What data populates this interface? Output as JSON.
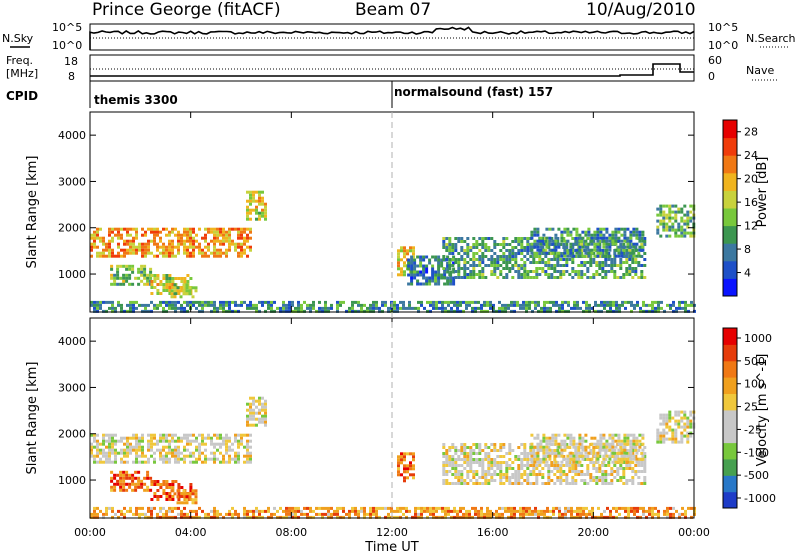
{
  "header": {
    "station": "Prince George (fitACF)",
    "beam": "Beam 07",
    "date": "10/Aug/2010"
  },
  "noise_panel": {
    "left_label": "N.Sky",
    "right_label": "N.Search",
    "left_ticks": [
      "10^5",
      "10^0"
    ],
    "right_ticks": [
      "10^5",
      "10^0"
    ]
  },
  "freq_panel": {
    "label_line1": "Freq.",
    "label_line2": "[MHz]",
    "right_label": "Nave",
    "left_ticks": [
      "18",
      "8"
    ],
    "right_ticks": [
      "60",
      "0"
    ]
  },
  "cpid": {
    "label": "CPID",
    "segments": [
      {
        "name": "themis 3300",
        "start_hour": 0
      },
      {
        "name": "normalsound (fast) 157",
        "start_hour": 12
      }
    ]
  },
  "chart_data": [
    {
      "type": "heatmap",
      "name": "power",
      "ylabel": "Slant Range [km]",
      "ylim": [
        180,
        4500
      ],
      "yticks": [
        "1000",
        "2000",
        "3000",
        "4000"
      ],
      "ytick_values": [
        1000,
        2000,
        3000,
        4000
      ],
      "xlim_hours": [
        0,
        24
      ],
      "colorbar": {
        "label": "Power [dB]",
        "ticks": [
          "4",
          "8",
          "12",
          "16",
          "20",
          "24",
          "28"
        ],
        "range": [
          0,
          30
        ],
        "colors": [
          "#0a14ff",
          "#1e50c8",
          "#3c78a0",
          "#3c9650",
          "#78c83c",
          "#c8d23c",
          "#f0b41e",
          "#f07814",
          "#f03c0a",
          "#e60000"
        ]
      },
      "regions": [
        {
          "t0": 0.0,
          "t1": 6.4,
          "r0": 1400,
          "r1": 2000,
          "level": 0.7
        },
        {
          "t0": 0.8,
          "t1": 2.4,
          "r0": 800,
          "r1": 1200,
          "level": 0.45
        },
        {
          "t0": 2.4,
          "t1": 4.0,
          "r0": 600,
          "r1": 1000,
          "level": 0.55
        },
        {
          "t0": 3.2,
          "t1": 4.2,
          "r0": 500,
          "r1": 800,
          "level": 0.5
        },
        {
          "t0": 6.2,
          "t1": 7.0,
          "r0": 2200,
          "r1": 2800,
          "level": 0.55
        },
        {
          "t0": 12.2,
          "t1": 12.8,
          "r0": 1000,
          "r1": 1600,
          "level": 0.6
        },
        {
          "t0": 12.6,
          "t1": 14.5,
          "r0": 800,
          "r1": 1400,
          "level": 0.25
        },
        {
          "t0": 14.0,
          "t1": 22.0,
          "r0": 900,
          "r1": 1800,
          "level": 0.35
        },
        {
          "t0": 17.5,
          "t1": 22.0,
          "r0": 1400,
          "r1": 2000,
          "level": 0.3
        },
        {
          "t0": 22.5,
          "t1": 24.0,
          "r0": 1800,
          "r1": 2500,
          "level": 0.4
        },
        {
          "t0": 0.0,
          "t1": 24.0,
          "r0": 180,
          "r1": 420,
          "level": 0.3
        }
      ]
    },
    {
      "type": "heatmap",
      "name": "velocity",
      "ylabel": "Slant Range [km]",
      "ylim": [
        180,
        4500
      ],
      "yticks": [
        "1000",
        "2000",
        "3000",
        "4000"
      ],
      "ytick_values": [
        1000,
        2000,
        3000,
        4000
      ],
      "xlabel": "Time UT",
      "xlim_hours": [
        0,
        24
      ],
      "xticks": [
        "00:00",
        "04:00",
        "08:00",
        "12:00",
        "16:00",
        "20:00",
        "00:00"
      ],
      "xtick_hours": [
        0,
        4,
        8,
        12,
        16,
        20,
        24
      ],
      "colorbar": {
        "label": "Velocity [m s^-1]",
        "ticks": [
          "1000",
          "500",
          "100",
          "25",
          "-25",
          "-100",
          "-500",
          "-1000"
        ],
        "range": [
          -1000,
          1000
        ],
        "colors": [
          "#1e3cc8",
          "#2878c8",
          "#46a050",
          "#78c83c",
          "#c8c8c8",
          "#c8c8c8",
          "#f0c83c",
          "#f0a01e",
          "#f07814",
          "#e63c0a",
          "#e60000"
        ]
      },
      "regions": [
        {
          "t0": 0.0,
          "t1": 6.4,
          "r0": 1400,
          "r1": 2000,
          "level": 0.5
        },
        {
          "t0": 0.8,
          "t1": 2.4,
          "r0": 800,
          "r1": 1200,
          "level": 0.8
        },
        {
          "t0": 2.4,
          "t1": 4.0,
          "r0": 600,
          "r1": 1000,
          "level": 0.82
        },
        {
          "t0": 3.2,
          "t1": 4.2,
          "r0": 500,
          "r1": 800,
          "level": 0.75
        },
        {
          "t0": 6.2,
          "t1": 7.0,
          "r0": 2200,
          "r1": 2800,
          "level": 0.5
        },
        {
          "t0": 12.2,
          "t1": 12.8,
          "r0": 1000,
          "r1": 1600,
          "level": 0.78
        },
        {
          "t0": 14.0,
          "t1": 22.0,
          "r0": 900,
          "r1": 1800,
          "level": 0.5
        },
        {
          "t0": 17.5,
          "t1": 22.0,
          "r0": 1400,
          "r1": 2000,
          "level": 0.5
        },
        {
          "t0": 22.5,
          "t1": 24.0,
          "r0": 1800,
          "r1": 2500,
          "level": 0.5
        },
        {
          "t0": 0.0,
          "t1": 24.0,
          "r0": 180,
          "r1": 420,
          "level": 0.7
        }
      ]
    }
  ]
}
